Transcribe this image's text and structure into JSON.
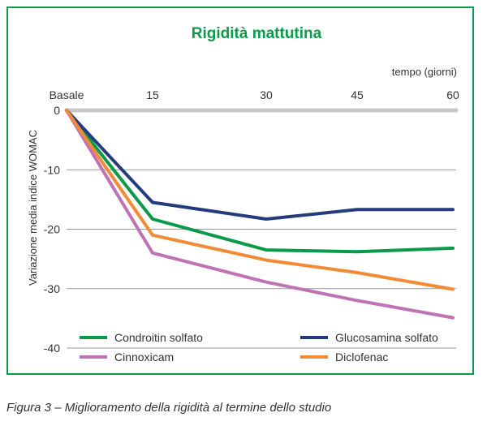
{
  "chart_data": {
    "type": "line",
    "title": "Rigidità mattutina",
    "x_axis_label": "tempo (giorni)",
    "ylabel": "Variazione media indice WOMAC",
    "categories": [
      "Basale",
      "15",
      "30",
      "45",
      "60"
    ],
    "ylim": [
      -40,
      0
    ],
    "yticks": [
      0,
      -10,
      -20,
      -30,
      -40
    ],
    "grid": true,
    "legend_position": "bottom-inside",
    "series": [
      {
        "name": "Condroitin solfato",
        "color": "#0a9a49",
        "values": [
          0,
          -18.3,
          -23.5,
          -23.8,
          -23.2
        ]
      },
      {
        "name": "Glucosamina solfato",
        "color": "#243c7e",
        "values": [
          0,
          -15.5,
          -18.3,
          -16.7,
          -16.7
        ]
      },
      {
        "name": "Cinnoxicam",
        "color": "#c073b4",
        "values": [
          0,
          -24.0,
          -28.9,
          -32.0,
          -34.9
        ]
      },
      {
        "name": "Diclofenac",
        "color": "#f28a36",
        "values": [
          0,
          -21.0,
          -25.2,
          -27.3,
          -30.1
        ]
      }
    ]
  },
  "caption": "Figura 3 – Miglioramento della rigidità al termine dello studio"
}
